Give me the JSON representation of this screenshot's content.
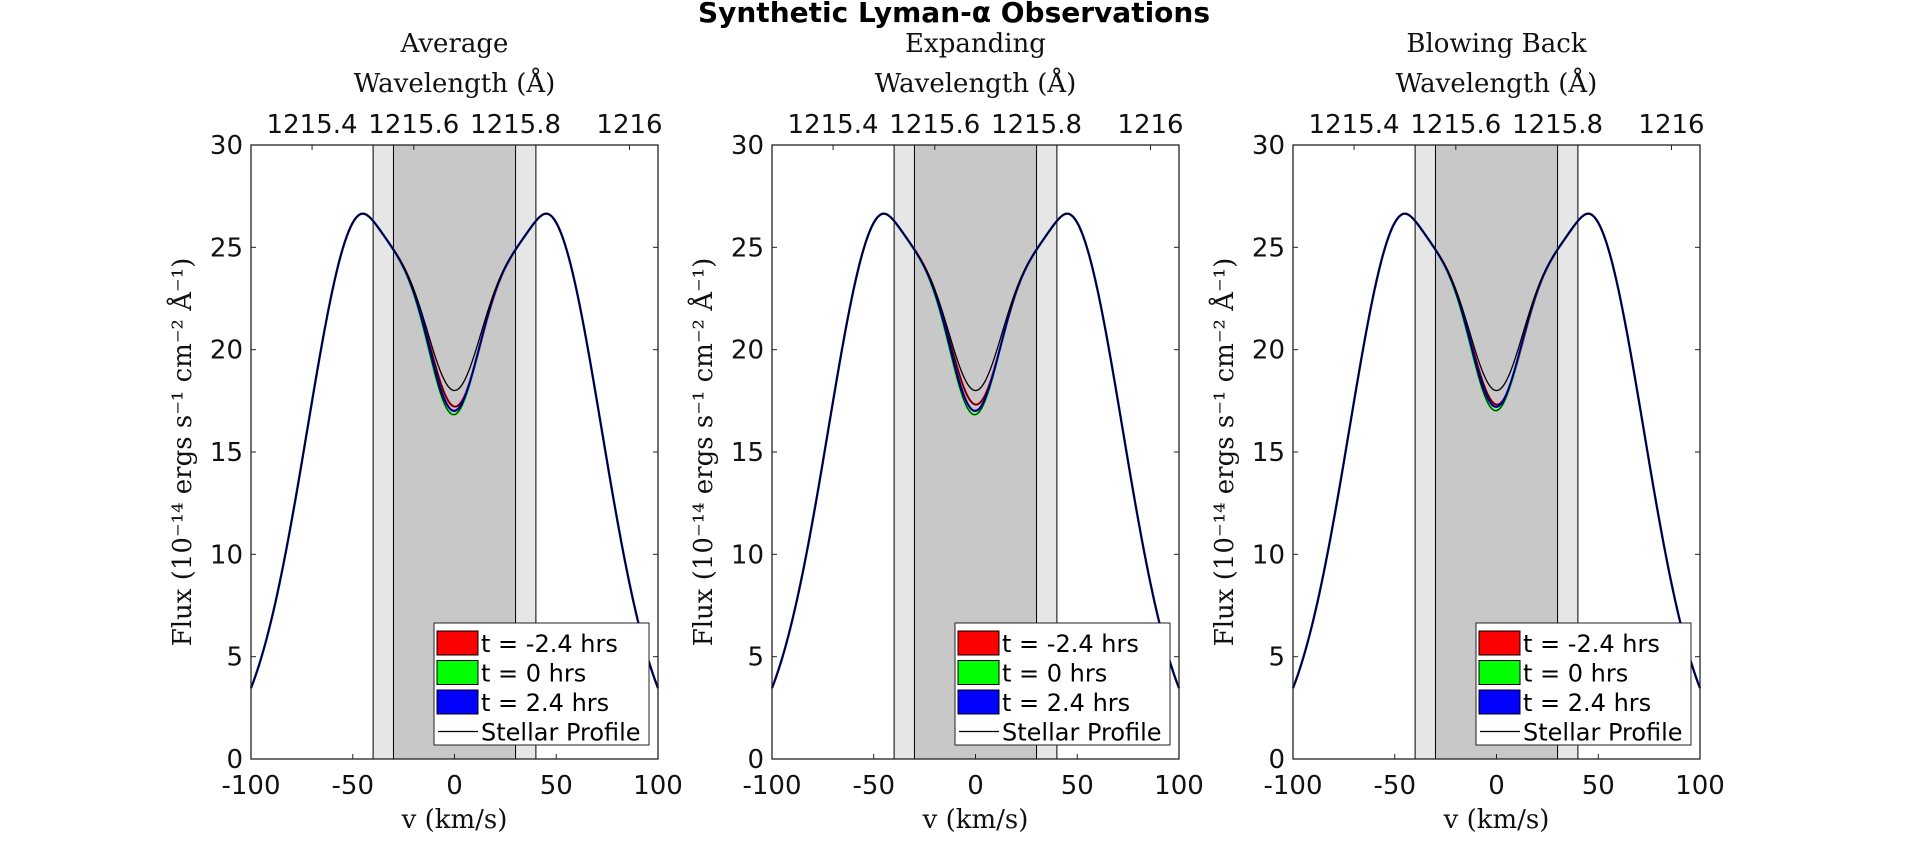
{
  "figure_title": "Synthetic Lyman-α Observations",
  "colors": {
    "red": "#ff0000",
    "green": "#00ff00",
    "blue": "#0000ff",
    "outer_band": "#e6e6e6",
    "inner_band": "#c8c8c8",
    "line": "#000000"
  },
  "chart_data": [
    {
      "type": "line",
      "title": "Average",
      "xlabel": "v (km/s)",
      "ylabel": "Flux (10⁻¹⁴ ergs s⁻¹ cm⁻² Å⁻¹)",
      "top_xlabel": "Wavelength (Å)",
      "xlim": [
        -100,
        100
      ],
      "ylim": [
        0,
        30
      ],
      "x_ticks": [
        "-100",
        "-50",
        "0",
        "50",
        "100"
      ],
      "y_ticks": [
        "0",
        "5",
        "10",
        "15",
        "20",
        "25",
        "30"
      ],
      "top_ticks": [
        "1215.4",
        "1215.6",
        "1215.8",
        "1216"
      ],
      "bands": {
        "outer": [
          -40,
          40
        ],
        "inner": [
          -30,
          30
        ]
      },
      "stellar_profile_min": 18.0,
      "series": [
        {
          "name": "t = -2.4 hrs",
          "color": "red",
          "min_flux": 17.2
        },
        {
          "name": "t = 0 hrs",
          "color": "green",
          "min_flux": 16.8
        },
        {
          "name": "t = 2.4 hrs",
          "color": "blue",
          "min_flux": 17.0
        },
        {
          "name": "Stellar Profile",
          "color": "line",
          "min_flux": 18.0
        }
      ]
    },
    {
      "type": "line",
      "title": "Expanding",
      "xlabel": "v (km/s)",
      "ylabel": "Flux (10⁻¹⁴ ergs s⁻¹ cm⁻² Å⁻¹)",
      "top_xlabel": "Wavelength (Å)",
      "xlim": [
        -100,
        100
      ],
      "ylim": [
        0,
        30
      ],
      "x_ticks": [
        "-100",
        "-50",
        "0",
        "50",
        "100"
      ],
      "y_ticks": [
        "0",
        "5",
        "10",
        "15",
        "20",
        "25",
        "30"
      ],
      "top_ticks": [
        "1215.4",
        "1215.6",
        "1215.8",
        "1216"
      ],
      "bands": {
        "outer": [
          -40,
          40
        ],
        "inner": [
          -30,
          30
        ]
      },
      "stellar_profile_min": 18.0,
      "series": [
        {
          "name": "t = -2.4 hrs",
          "color": "red",
          "min_flux": 17.3
        },
        {
          "name": "t = 0 hrs",
          "color": "green",
          "min_flux": 16.8
        },
        {
          "name": "t = 2.4 hrs",
          "color": "blue",
          "min_flux": 17.0
        },
        {
          "name": "Stellar Profile",
          "color": "line",
          "min_flux": 18.0
        }
      ]
    },
    {
      "type": "line",
      "title": "Blowing Back",
      "xlabel": "v (km/s)",
      "ylabel": "Flux (10⁻¹⁴ ergs s⁻¹ cm⁻² Å⁻¹)",
      "top_xlabel": "Wavelength (Å)",
      "xlim": [
        -100,
        100
      ],
      "ylim": [
        0,
        30
      ],
      "x_ticks": [
        "-100",
        "-50",
        "0",
        "50",
        "100"
      ],
      "y_ticks": [
        "0",
        "5",
        "10",
        "15",
        "20",
        "25",
        "30"
      ],
      "top_ticks": [
        "1215.4",
        "1215.6",
        "1215.8",
        "1216"
      ],
      "bands": {
        "outer": [
          -40,
          40
        ],
        "inner": [
          -30,
          30
        ]
      },
      "stellar_profile_min": 18.0,
      "series": [
        {
          "name": "t = -2.4 hrs",
          "color": "red",
          "min_flux": 17.3
        },
        {
          "name": "t = 0 hrs",
          "color": "green",
          "min_flux": 17.0
        },
        {
          "name": "t = 2.4 hrs",
          "color": "blue",
          "min_flux": 17.2
        },
        {
          "name": "Stellar Profile",
          "color": "line",
          "min_flux": 18.0
        }
      ]
    }
  ]
}
